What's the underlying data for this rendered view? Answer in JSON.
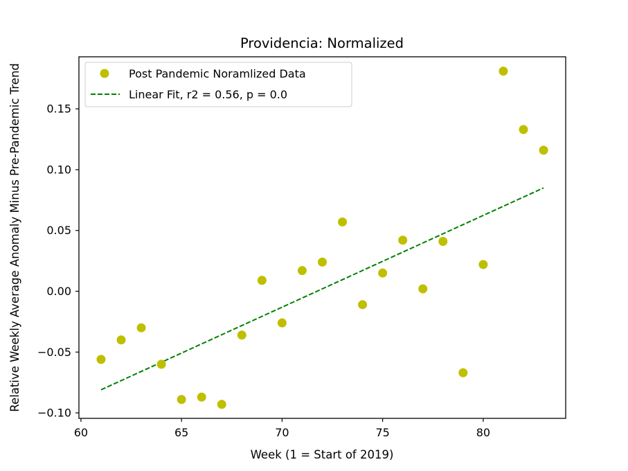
{
  "chart_data": {
    "type": "scatter",
    "title": "Providencia: Normalized",
    "xlabel": "Week (1 = Start of 2019)",
    "ylabel": "Relative Weekly Average Anomaly Minus Pre-Pandemic Trend",
    "xlim": [
      59.9,
      84.1
    ],
    "ylim": [
      -0.1045,
      0.1928
    ],
    "xticks": [
      60,
      65,
      70,
      75,
      80
    ],
    "xtick_labels": [
      "60",
      "65",
      "70",
      "75",
      "80"
    ],
    "yticks": [
      -0.1,
      -0.05,
      0.0,
      0.05,
      0.1,
      0.15
    ],
    "ytick_labels": [
      "−0.10",
      "−0.05",
      "0.00",
      "0.05",
      "0.10",
      "0.15"
    ],
    "grid": false,
    "legend_position": "upper-left",
    "series": [
      {
        "name": "Post Pandemic Noramlized Data",
        "kind": "scatter",
        "color": "#bfbf00",
        "x": [
          61,
          62,
          63,
          64,
          65,
          66,
          67,
          68,
          69,
          70,
          71,
          72,
          73,
          74,
          75,
          76,
          77,
          78,
          79,
          80,
          81,
          82,
          83
        ],
        "y": [
          -0.056,
          -0.04,
          -0.03,
          -0.06,
          -0.089,
          -0.087,
          -0.093,
          -0.036,
          0.009,
          -0.026,
          0.017,
          0.024,
          0.057,
          -0.011,
          0.015,
          0.042,
          0.002,
          0.041,
          -0.067,
          0.022,
          0.181,
          0.133,
          0.116
        ]
      },
      {
        "name": "Linear Fit, r2 = 0.56, p = 0.0",
        "kind": "line",
        "style": "dashed",
        "color": "#008000",
        "x": [
          61,
          83
        ],
        "y": [
          -0.081,
          0.085
        ]
      }
    ]
  }
}
